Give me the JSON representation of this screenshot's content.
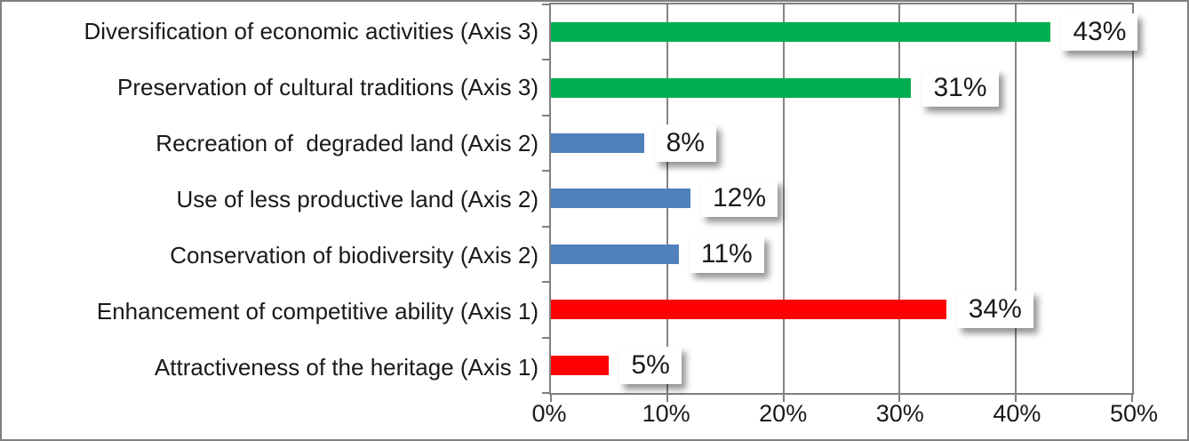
{
  "chart_data": {
    "type": "bar",
    "orientation": "horizontal",
    "title": "",
    "legend": "none",
    "gridlines": "vertical",
    "categories": [
      "Diversification of economic activities (Axis 3)",
      "Preservation of cultural traditions (Axis 3)",
      "Recreation of  degraded land (Axis 2)",
      "Use of less productive land (Axis 2)",
      "Conservation of biodiversity (Axis 2)",
      "Enhancement of competitive ability (Axis 1)",
      "Attractiveness of the heritage (Axis 1)"
    ],
    "values": [
      43,
      31,
      8,
      12,
      11,
      34,
      5
    ],
    "value_labels": [
      "43%",
      "31%",
      "8%",
      "12%",
      "11%",
      "34%",
      "5%"
    ],
    "bar_colors": [
      "#00AE50",
      "#00AE50",
      "#4F81BD",
      "#4F81BD",
      "#4F81BD",
      "#FF0000",
      "#FF0000"
    ],
    "xlim": [
      0,
      50
    ],
    "x_ticks": [
      "0%",
      "10%",
      "20%",
      "30%",
      "40%",
      "50%"
    ],
    "x_tick_values": [
      0,
      10,
      20,
      30,
      40,
      50
    ]
  },
  "colors": {
    "grid": "#848484",
    "axis": "#808080",
    "frame": "#808080",
    "text": "#1A1A1A",
    "value_box_bg": "#FFFFFF"
  }
}
